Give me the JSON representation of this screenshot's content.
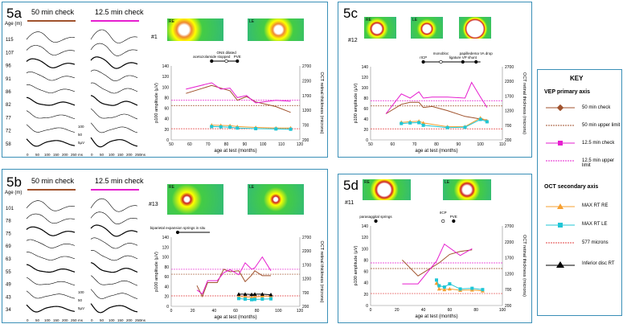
{
  "colors": {
    "vep50": "#a0522d",
    "vep125": "#e61ecf",
    "oct_re": "#f7a030",
    "oct_le": "#1fc6d6",
    "ref577": "#e34040",
    "frame": "#3a8fb7"
  },
  "panels": {
    "a": {
      "label": "5a",
      "col1": "50 min check",
      "col2": "12.5 min check",
      "age_header": "Age (m)",
      "ages": [
        "115",
        "107",
        "96",
        "91",
        "86",
        "82",
        "77",
        "72",
        "58"
      ],
      "xunit": "ms",
      "patient": "#1",
      "eye_re": "RE",
      "eye_le": "LE",
      "scale_uv": "5µV",
      "scale_50": "50",
      "scale_100": "100"
    },
    "b": {
      "label": "5b",
      "col1": "50 min check",
      "col2": "12.5 min check",
      "age_header": "Age (m)",
      "ages": [
        "101",
        "78",
        "75",
        "69",
        "63",
        "55",
        "49",
        "43",
        "34"
      ],
      "xunit": "ms",
      "patient": "#13",
      "eye_re": "RE",
      "eye_le": "LE",
      "scale_uv": "5µV",
      "scale_50": "50",
      "scale_100": "100"
    },
    "c": {
      "label": "5c",
      "patient": "#12",
      "eye_re": "RE",
      "eye_le": "LE"
    },
    "d": {
      "label": "5d",
      "patient": "#11",
      "eye_re": "RE",
      "eye_le": "LE"
    }
  },
  "key": {
    "title": "KEY",
    "vep_header": "VEP primary axis",
    "oct_header": "OCT secondary axis",
    "items": [
      "50 min check",
      "50 min upper limit",
      "12.5 min check",
      "12.5 min upper limit",
      "MAX RT RE",
      "MAX RT LE",
      "577 microns",
      "Inferior disc RT"
    ]
  },
  "chart_data": [
    {
      "id": "a",
      "type": "line",
      "xlabel": "age at test (months)",
      "ylabel": "p100 amplitude (µV)",
      "y2label": "OCT retinal thickness (microns)",
      "xlim": [
        50,
        120
      ],
      "xticks": [
        50,
        60,
        70,
        80,
        90,
        100,
        110,
        120
      ],
      "ylim": [
        0,
        140
      ],
      "yticks": [
        0,
        20,
        40,
        60,
        80,
        100,
        120,
        140
      ],
      "y2lim": [
        200,
        2700
      ],
      "y2ticks": [
        200,
        700,
        1200,
        1700,
        2200,
        2700
      ],
      "upper_limit_50": 65,
      "upper_limit_125": 75,
      "ref577_micron": 577,
      "series": [
        {
          "name": "50 min check",
          "axis": "left",
          "color": "vep50",
          "marker": "none",
          "x": [
            58,
            72,
            82,
            86,
            91,
            96,
            107,
            115
          ],
          "y": [
            88,
            103,
            93,
            75,
            82,
            72,
            63,
            52
          ]
        },
        {
          "name": "12.5 min check",
          "axis": "left",
          "color": "vep125",
          "marker": "none",
          "x": [
            58,
            72,
            77,
            82,
            86,
            91,
            96,
            107,
            115
          ],
          "y": [
            96,
            108,
            96,
            98,
            80,
            84,
            70,
            75,
            73
          ]
        },
        {
          "name": "MAX RT RE",
          "axis": "right",
          "color": "oct_re",
          "marker": "triangle",
          "x": [
            72,
            77,
            82,
            86,
            96,
            107,
            115
          ],
          "y": [
            700,
            690,
            680,
            650,
            620,
            600,
            600
          ]
        },
        {
          "name": "MAX RT LE",
          "axis": "right",
          "color": "oct_le",
          "marker": "square",
          "x": [
            72,
            77,
            82,
            86,
            96,
            107,
            115
          ],
          "y": [
            650,
            640,
            630,
            600,
            580,
            570,
            560
          ]
        }
      ],
      "events": [
        {
          "label": "acetozolamide stopped",
          "x": 72
        },
        {
          "label": "ONS dilated",
          "x": 80
        },
        {
          "label": "PVE",
          "x": 86
        }
      ],
      "event_range": [
        72,
        86
      ]
    },
    {
      "id": "b",
      "type": "line",
      "xlabel": "age at test (months)",
      "ylabel": "p100 amplitude (µV)",
      "y2label": "OCT retinal thickness (microns)",
      "xlim": [
        0,
        120
      ],
      "xticks": [
        0,
        20,
        40,
        60,
        80,
        100,
        120
      ],
      "ylim": [
        0,
        140
      ],
      "yticks": [
        0,
        20,
        40,
        60,
        80,
        100,
        120,
        140
      ],
      "y2lim": [
        200,
        2700
      ],
      "y2ticks": [
        200,
        700,
        1200,
        1700,
        2200,
        2700
      ],
      "upper_limit_50": 65,
      "upper_limit_125": 75,
      "ref577_micron": 577,
      "series": [
        {
          "name": "50 min check",
          "axis": "left",
          "color": "vep50",
          "marker": "none",
          "x": [
            24,
            29,
            34,
            43,
            49,
            55,
            63,
            69,
            75,
            78,
            85,
            93
          ],
          "y": [
            42,
            20,
            48,
            48,
            75,
            70,
            72,
            50,
            63,
            72,
            62,
            62
          ]
        },
        {
          "name": "12.5 min check",
          "axis": "left",
          "color": "vep125",
          "marker": "none",
          "x": [
            24,
            29,
            34,
            43,
            49,
            55,
            63,
            69,
            75,
            78,
            85,
            93
          ],
          "y": [
            33,
            25,
            52,
            52,
            68,
            74,
            64,
            88,
            75,
            78,
            100,
            72
          ]
        },
        {
          "name": "MAX RT RE",
          "axis": "right",
          "color": "oct_re",
          "marker": "triangle",
          "x": [
            63,
            69,
            75,
            78,
            85,
            93
          ],
          "y": [
            560,
            540,
            520,
            540,
            560,
            560
          ]
        },
        {
          "name": "MAX RT LE",
          "axis": "right",
          "color": "oct_le",
          "marker": "square",
          "x": [
            63,
            69,
            75,
            78,
            85,
            93
          ],
          "y": [
            480,
            460,
            440,
            450,
            460,
            470
          ]
        },
        {
          "name": "Inferior disc RT",
          "axis": "right",
          "color": "#000000",
          "marker": "triangle",
          "x": [
            63,
            69,
            75,
            78,
            85,
            93
          ],
          "y": [
            640,
            640,
            630,
            640,
            640,
            620
          ]
        }
      ],
      "events": [
        {
          "label": "biparietal expansion springs in situ",
          "x": 6
        }
      ],
      "event_range": [
        6,
        36
      ]
    },
    {
      "id": "c",
      "type": "line",
      "xlabel": "age at test (months)",
      "ylabel": "p100 amplitude (µV)",
      "y2label": "OCT retinal thickness (microns)",
      "xlim": [
        50,
        110
      ],
      "xticks": [
        50,
        60,
        70,
        80,
        90,
        100,
        110
      ],
      "ylim": [
        0,
        140
      ],
      "yticks": [
        0,
        20,
        40,
        60,
        80,
        100,
        120,
        140
      ],
      "y2lim": [
        200,
        2700
      ],
      "y2ticks": [
        200,
        700,
        1200,
        1700,
        2200,
        2700
      ],
      "upper_limit_50": 65,
      "upper_limit_125": 75,
      "ref577_micron": 577,
      "series": [
        {
          "name": "50 min check",
          "axis": "left",
          "color": "vep50",
          "marker": "none",
          "x": [
            57,
            64,
            68,
            72,
            74,
            78,
            85,
            93,
            100,
            103
          ],
          "y": [
            50,
            68,
            72,
            72,
            62,
            64,
            56,
            45,
            40,
            38
          ]
        },
        {
          "name": "12.5 min check",
          "axis": "left",
          "color": "vep125",
          "marker": "none",
          "x": [
            57,
            64,
            68,
            72,
            74,
            78,
            85,
            93,
            96,
            100,
            103
          ],
          "y": [
            50,
            88,
            80,
            92,
            80,
            82,
            82,
            80,
            110,
            82,
            62
          ]
        },
        {
          "name": "MAX RT RE",
          "axis": "right",
          "color": "oct_re",
          "marker": "triangle",
          "x": [
            64,
            68,
            72,
            74,
            85,
            93,
            100,
            103
          ],
          "y": [
            800,
            820,
            840,
            780,
            650,
            650,
            950,
            850
          ]
        },
        {
          "name": "MAX RT LE",
          "axis": "right",
          "color": "oct_le",
          "marker": "square",
          "x": [
            64,
            68,
            72,
            74,
            85,
            93,
            100,
            103
          ],
          "y": [
            760,
            780,
            790,
            700,
            620,
            630,
            900,
            820
          ]
        }
      ],
      "events": [
        {
          "label": "rICP",
          "x": 74
        },
        {
          "label": "monobloc",
          "x": 82
        },
        {
          "label": "ligature VP shunt",
          "x": 92
        },
        {
          "label": "papilledema VA drop",
          "x": 98
        }
      ],
      "event_range": [
        74,
        100
      ]
    },
    {
      "id": "d",
      "type": "line",
      "xlabel": "age at test (months)",
      "ylabel": "p100 amplitude (µV)",
      "y2label": "OCT retinal thickness (microns)",
      "xlim": [
        0,
        100
      ],
      "xticks": [
        0,
        20,
        40,
        60,
        80,
        100
      ],
      "ylim": [
        0,
        140
      ],
      "yticks": [
        0,
        20,
        40,
        60,
        80,
        100,
        120,
        140
      ],
      "y2lim": [
        200,
        2700
      ],
      "y2ticks": [
        200,
        700,
        1200,
        1700,
        2200,
        2700
      ],
      "upper_limit_50": 65,
      "upper_limit_125": 75,
      "ref577_micron": 577,
      "series": [
        {
          "name": "50 min check",
          "axis": "left",
          "color": "vep50",
          "marker": "none",
          "x": [
            24,
            36,
            52,
            60,
            68,
            77
          ],
          "y": [
            80,
            52,
            75,
            90,
            95,
            98
          ]
        },
        {
          "name": "12.5 min check",
          "axis": "left",
          "color": "vep125",
          "marker": "none",
          "x": [
            24,
            36,
            50,
            56,
            68,
            77
          ],
          "y": [
            38,
            38,
            78,
            108,
            88,
            100
          ]
        },
        {
          "name": "MAX RT RE",
          "axis": "right",
          "color": "oct_re",
          "marker": "triangle",
          "x": [
            50,
            52,
            56,
            60,
            68,
            77,
            85
          ],
          "y": [
            900,
            720,
            700,
            720,
            680,
            690,
            660
          ]
        },
        {
          "name": "MAX RT LE",
          "axis": "right",
          "color": "oct_le",
          "marker": "square",
          "x": [
            50,
            52,
            56,
            60,
            68,
            77,
            85
          ],
          "y": [
            1000,
            820,
            780,
            880,
            720,
            740,
            700
          ]
        }
      ],
      "events": [
        {
          "label": "parasaggital springs",
          "x": 4
        },
        {
          "label": "rICP",
          "x": 55
        },
        {
          "label": "PVE",
          "x": 63
        }
      ],
      "event_range": null
    }
  ]
}
